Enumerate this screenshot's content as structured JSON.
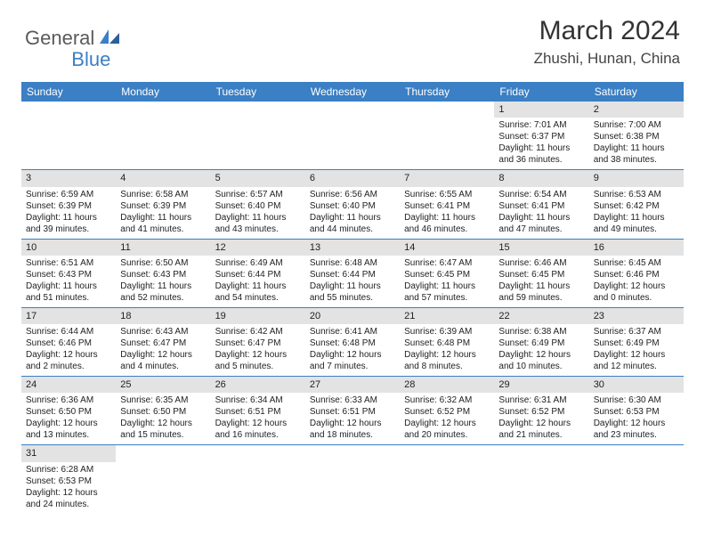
{
  "logo": {
    "text1": "General",
    "text2": "Blue"
  },
  "title": "March 2024",
  "location": "Zhushi, Hunan, China",
  "colors": {
    "header_bg": "#3b7fc4",
    "header_text": "#ffffff",
    "daynum_bg": "#e3e3e3",
    "row_border": "#3b7fc4",
    "body_text": "#222222",
    "logo_gray": "#5a5a5a",
    "logo_blue": "#3b7fc4"
  },
  "day_names": [
    "Sunday",
    "Monday",
    "Tuesday",
    "Wednesday",
    "Thursday",
    "Friday",
    "Saturday"
  ],
  "weeks": [
    [
      {
        "empty": true
      },
      {
        "empty": true
      },
      {
        "empty": true
      },
      {
        "empty": true
      },
      {
        "empty": true
      },
      {
        "day": "1",
        "sunrise": "Sunrise: 7:01 AM",
        "sunset": "Sunset: 6:37 PM",
        "dl1": "Daylight: 11 hours",
        "dl2": "and 36 minutes."
      },
      {
        "day": "2",
        "sunrise": "Sunrise: 7:00 AM",
        "sunset": "Sunset: 6:38 PM",
        "dl1": "Daylight: 11 hours",
        "dl2": "and 38 minutes."
      }
    ],
    [
      {
        "day": "3",
        "sunrise": "Sunrise: 6:59 AM",
        "sunset": "Sunset: 6:39 PM",
        "dl1": "Daylight: 11 hours",
        "dl2": "and 39 minutes."
      },
      {
        "day": "4",
        "sunrise": "Sunrise: 6:58 AM",
        "sunset": "Sunset: 6:39 PM",
        "dl1": "Daylight: 11 hours",
        "dl2": "and 41 minutes."
      },
      {
        "day": "5",
        "sunrise": "Sunrise: 6:57 AM",
        "sunset": "Sunset: 6:40 PM",
        "dl1": "Daylight: 11 hours",
        "dl2": "and 43 minutes."
      },
      {
        "day": "6",
        "sunrise": "Sunrise: 6:56 AM",
        "sunset": "Sunset: 6:40 PM",
        "dl1": "Daylight: 11 hours",
        "dl2": "and 44 minutes."
      },
      {
        "day": "7",
        "sunrise": "Sunrise: 6:55 AM",
        "sunset": "Sunset: 6:41 PM",
        "dl1": "Daylight: 11 hours",
        "dl2": "and 46 minutes."
      },
      {
        "day": "8",
        "sunrise": "Sunrise: 6:54 AM",
        "sunset": "Sunset: 6:41 PM",
        "dl1": "Daylight: 11 hours",
        "dl2": "and 47 minutes."
      },
      {
        "day": "9",
        "sunrise": "Sunrise: 6:53 AM",
        "sunset": "Sunset: 6:42 PM",
        "dl1": "Daylight: 11 hours",
        "dl2": "and 49 minutes."
      }
    ],
    [
      {
        "day": "10",
        "sunrise": "Sunrise: 6:51 AM",
        "sunset": "Sunset: 6:43 PM",
        "dl1": "Daylight: 11 hours",
        "dl2": "and 51 minutes."
      },
      {
        "day": "11",
        "sunrise": "Sunrise: 6:50 AM",
        "sunset": "Sunset: 6:43 PM",
        "dl1": "Daylight: 11 hours",
        "dl2": "and 52 minutes."
      },
      {
        "day": "12",
        "sunrise": "Sunrise: 6:49 AM",
        "sunset": "Sunset: 6:44 PM",
        "dl1": "Daylight: 11 hours",
        "dl2": "and 54 minutes."
      },
      {
        "day": "13",
        "sunrise": "Sunrise: 6:48 AM",
        "sunset": "Sunset: 6:44 PM",
        "dl1": "Daylight: 11 hours",
        "dl2": "and 55 minutes."
      },
      {
        "day": "14",
        "sunrise": "Sunrise: 6:47 AM",
        "sunset": "Sunset: 6:45 PM",
        "dl1": "Daylight: 11 hours",
        "dl2": "and 57 minutes."
      },
      {
        "day": "15",
        "sunrise": "Sunrise: 6:46 AM",
        "sunset": "Sunset: 6:45 PM",
        "dl1": "Daylight: 11 hours",
        "dl2": "and 59 minutes."
      },
      {
        "day": "16",
        "sunrise": "Sunrise: 6:45 AM",
        "sunset": "Sunset: 6:46 PM",
        "dl1": "Daylight: 12 hours",
        "dl2": "and 0 minutes."
      }
    ],
    [
      {
        "day": "17",
        "sunrise": "Sunrise: 6:44 AM",
        "sunset": "Sunset: 6:46 PM",
        "dl1": "Daylight: 12 hours",
        "dl2": "and 2 minutes."
      },
      {
        "day": "18",
        "sunrise": "Sunrise: 6:43 AM",
        "sunset": "Sunset: 6:47 PM",
        "dl1": "Daylight: 12 hours",
        "dl2": "and 4 minutes."
      },
      {
        "day": "19",
        "sunrise": "Sunrise: 6:42 AM",
        "sunset": "Sunset: 6:47 PM",
        "dl1": "Daylight: 12 hours",
        "dl2": "and 5 minutes."
      },
      {
        "day": "20",
        "sunrise": "Sunrise: 6:41 AM",
        "sunset": "Sunset: 6:48 PM",
        "dl1": "Daylight: 12 hours",
        "dl2": "and 7 minutes."
      },
      {
        "day": "21",
        "sunrise": "Sunrise: 6:39 AM",
        "sunset": "Sunset: 6:48 PM",
        "dl1": "Daylight: 12 hours",
        "dl2": "and 8 minutes."
      },
      {
        "day": "22",
        "sunrise": "Sunrise: 6:38 AM",
        "sunset": "Sunset: 6:49 PM",
        "dl1": "Daylight: 12 hours",
        "dl2": "and 10 minutes."
      },
      {
        "day": "23",
        "sunrise": "Sunrise: 6:37 AM",
        "sunset": "Sunset: 6:49 PM",
        "dl1": "Daylight: 12 hours",
        "dl2": "and 12 minutes."
      }
    ],
    [
      {
        "day": "24",
        "sunrise": "Sunrise: 6:36 AM",
        "sunset": "Sunset: 6:50 PM",
        "dl1": "Daylight: 12 hours",
        "dl2": "and 13 minutes."
      },
      {
        "day": "25",
        "sunrise": "Sunrise: 6:35 AM",
        "sunset": "Sunset: 6:50 PM",
        "dl1": "Daylight: 12 hours",
        "dl2": "and 15 minutes."
      },
      {
        "day": "26",
        "sunrise": "Sunrise: 6:34 AM",
        "sunset": "Sunset: 6:51 PM",
        "dl1": "Daylight: 12 hours",
        "dl2": "and 16 minutes."
      },
      {
        "day": "27",
        "sunrise": "Sunrise: 6:33 AM",
        "sunset": "Sunset: 6:51 PM",
        "dl1": "Daylight: 12 hours",
        "dl2": "and 18 minutes."
      },
      {
        "day": "28",
        "sunrise": "Sunrise: 6:32 AM",
        "sunset": "Sunset: 6:52 PM",
        "dl1": "Daylight: 12 hours",
        "dl2": "and 20 minutes."
      },
      {
        "day": "29",
        "sunrise": "Sunrise: 6:31 AM",
        "sunset": "Sunset: 6:52 PM",
        "dl1": "Daylight: 12 hours",
        "dl2": "and 21 minutes."
      },
      {
        "day": "30",
        "sunrise": "Sunrise: 6:30 AM",
        "sunset": "Sunset: 6:53 PM",
        "dl1": "Daylight: 12 hours",
        "dl2": "and 23 minutes."
      }
    ],
    [
      {
        "day": "31",
        "sunrise": "Sunrise: 6:28 AM",
        "sunset": "Sunset: 6:53 PM",
        "dl1": "Daylight: 12 hours",
        "dl2": "and 24 minutes."
      },
      {
        "empty": true
      },
      {
        "empty": true
      },
      {
        "empty": true
      },
      {
        "empty": true
      },
      {
        "empty": true
      },
      {
        "empty": true
      }
    ]
  ]
}
